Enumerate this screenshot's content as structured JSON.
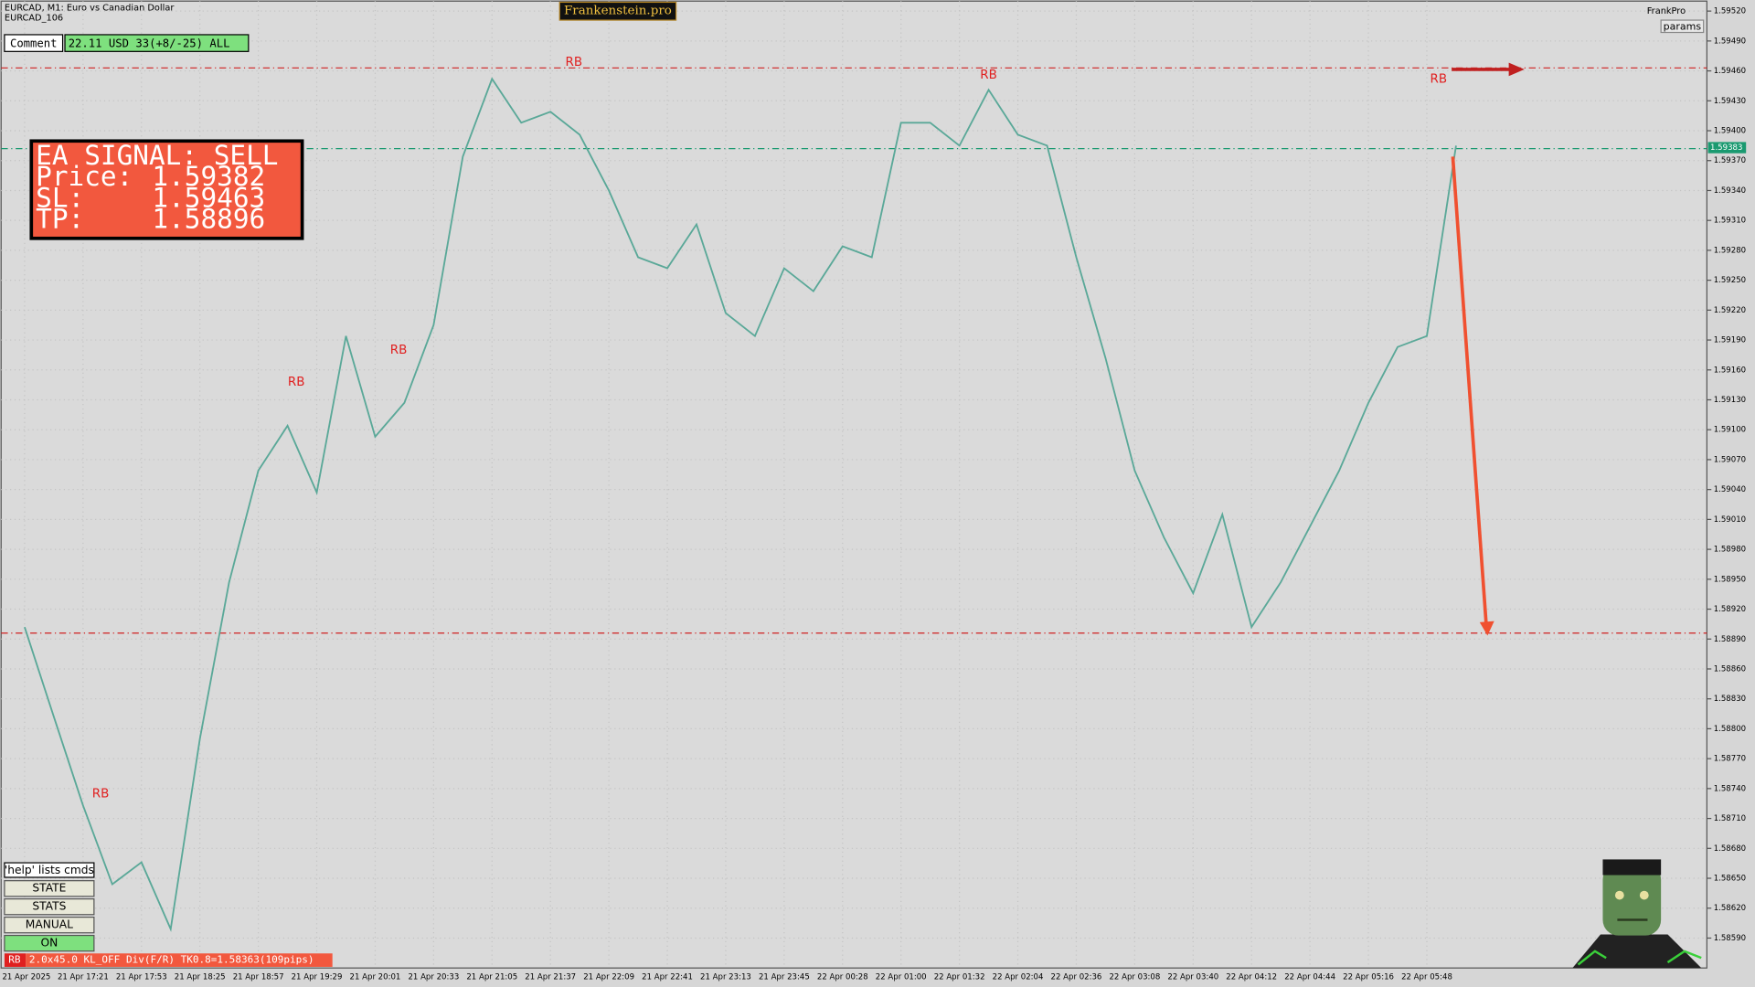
{
  "header": {
    "symbol": "EURCAD, M1:  Euro vs Canadian Dollar",
    "account": "EURCAD_106",
    "brand": "Frankenstein.pro",
    "user": "FrankPro",
    "params": "params"
  },
  "comment": {
    "label": "Comment",
    "text": "22.11 USD 33(+8/-25) ALL"
  },
  "signal_panel": {
    "title": "EA SIGNAL: SELL",
    "rows": [
      {
        "label": "Price:",
        "value": "1.59382"
      },
      {
        "label": "SL:",
        "value": "1.59463"
      },
      {
        "label": "TP:",
        "value": "1.58896"
      }
    ]
  },
  "buttons": {
    "help": "'help' lists cmds",
    "items": [
      "STATE",
      "STATS",
      "MANUAL",
      "ON"
    ]
  },
  "status": {
    "tag": "RB",
    "text": "2.0x45.0 KL_OFF Div(F/R) TK0.8=1.58363(109pips)"
  },
  "chart_data": {
    "type": "line",
    "categories": [
      "21 Apr 2025",
      null,
      "21 Apr 17:21",
      null,
      "21 Apr 17:53",
      null,
      "21 Apr 18:25",
      null,
      "21 Apr 18:57",
      null,
      "21 Apr 19:29",
      null,
      "21 Apr 20:01",
      null,
      "21 Apr 20:33",
      null,
      "21 Apr 21:05",
      null,
      "21 Apr 21:37",
      null,
      "21 Apr 22:09",
      null,
      "21 Apr 22:41",
      null,
      "21 Apr 23:13",
      null,
      "21 Apr 23:45",
      null,
      "22 Apr 00:28",
      null,
      "22 Apr 01:00",
      null,
      "22 Apr 01:32",
      null,
      "22 Apr 02:04",
      null,
      "22 Apr 02:36",
      null,
      "22 Apr 03:08",
      null,
      "22 Apr 03:40",
      null,
      "22 Apr 04:12",
      null,
      "22 Apr 04:44",
      null,
      "22 Apr 05:16",
      null,
      "22 Apr 05:48",
      null
    ],
    "series": [
      {
        "color": "#5aa898",
        "values": [
          1.58902,
          1.58812,
          1.58723,
          1.58644,
          1.58666,
          1.58599,
          1.5879,
          1.58947,
          1.59059,
          1.59104,
          1.59037,
          1.59194,
          1.59093,
          1.59127,
          1.59205,
          1.59374,
          1.59452,
          1.59408,
          1.59419,
          1.59396,
          1.5934,
          1.59273,
          1.59262,
          1.59306,
          1.59217,
          1.59194,
          1.59262,
          1.59239,
          1.59284,
          1.59273,
          1.59408,
          1.59408,
          1.59385,
          1.59441,
          1.59396,
          1.59385,
          1.59273,
          1.59172,
          1.59059,
          1.58992,
          1.58936,
          1.59015,
          1.58902,
          1.58947,
          1.59003,
          1.59059,
          1.59127,
          1.59183,
          1.59194,
          1.59385
        ]
      }
    ],
    "ylim": [
      1.5856,
      1.5953
    ],
    "yticks": [
      {
        "value": 1.5952,
        "label": "1.59520"
      },
      {
        "value": 1.5949,
        "label": "1.59490"
      },
      {
        "value": 1.5946,
        "label": "1.59460"
      },
      {
        "value": 1.5943,
        "label": "1.59430"
      },
      {
        "value": 1.594,
        "label": "1.59400"
      },
      {
        "value": 1.5937,
        "label": "1.59370"
      },
      {
        "value": 1.5934,
        "label": "1.59340"
      },
      {
        "value": 1.5931,
        "label": "1.59310"
      },
      {
        "value": 1.5928,
        "label": "1.59280"
      },
      {
        "value": 1.5925,
        "label": "1.59250"
      },
      {
        "value": 1.5922,
        "label": "1.59220"
      },
      {
        "value": 1.5919,
        "label": "1.59190"
      },
      {
        "value": 1.5916,
        "label": "1.59160"
      },
      {
        "value": 1.5913,
        "label": "1.59130"
      },
      {
        "value": 1.591,
        "label": "1.59100"
      },
      {
        "value": 1.5907,
        "label": "1.59070"
      },
      {
        "value": 1.5904,
        "label": "1.59040"
      },
      {
        "value": 1.5901,
        "label": "1.59010"
      },
      {
        "value": 1.5898,
        "label": "1.58980"
      },
      {
        "value": 1.5895,
        "label": "1.58950"
      },
      {
        "value": 1.5892,
        "label": "1.58920"
      },
      {
        "value": 1.5889,
        "label": "1.58890"
      },
      {
        "value": 1.5886,
        "label": "1.58860"
      },
      {
        "value": 1.5883,
        "label": "1.58830"
      },
      {
        "value": 1.588,
        "label": "1.58800"
      },
      {
        "value": 1.5877,
        "label": "1.58770"
      },
      {
        "value": 1.5874,
        "label": "1.58740"
      },
      {
        "value": 1.5871,
        "label": "1.58710"
      },
      {
        "value": 1.5868,
        "label": "1.58680"
      },
      {
        "value": 1.5865,
        "label": "1.58650"
      },
      {
        "value": 1.5862,
        "label": "1.58620"
      },
      {
        "value": 1.5859,
        "label": "1.58590"
      }
    ],
    "grid": true,
    "levels": [
      {
        "value": 1.59463,
        "color": "#d02020"
      },
      {
        "value": 1.59382,
        "color": "#1a9a70"
      },
      {
        "value": 1.58896,
        "color": "#d02020"
      }
    ],
    "price_tag": 1.59383,
    "annotations": [
      {
        "text": "RB",
        "x": 2.6,
        "y": 1.58735
      },
      {
        "text": "RB",
        "x": 9.3,
        "y": 1.59148
      },
      {
        "text": "RB",
        "x": 12.8,
        "y": 1.5918
      },
      {
        "text": "RB",
        "x": 18.8,
        "y": 1.59469
      },
      {
        "text": "RB",
        "x": 33,
        "y": 1.59456
      },
      {
        "text": "RB",
        "x": 48.4,
        "y": 1.59452
      }
    ]
  }
}
